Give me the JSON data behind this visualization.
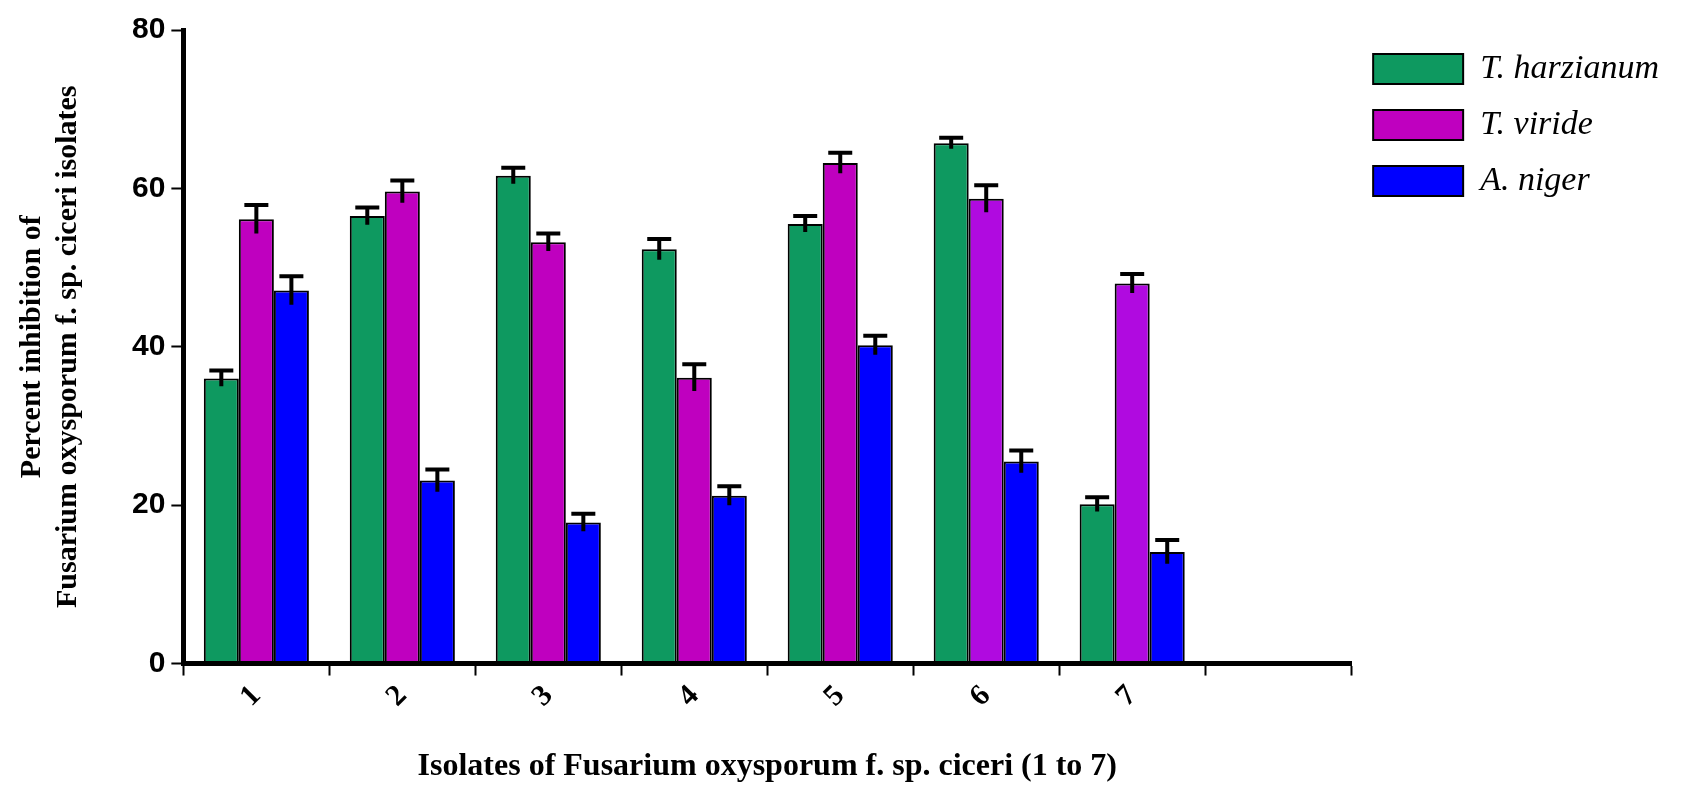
{
  "chart_data": {
    "type": "bar",
    "xlabel": "Isolates of Fusarium oxysporum f. sp. ciceri (1 to 7)",
    "ylabel": "Percent inhibition of\nFusarium oxysporum f. sp. ciceri isolates",
    "categories": [
      "1",
      "2",
      "3",
      "4",
      "5",
      "6",
      "7",
      null
    ],
    "series": [
      {
        "name": "T. harzianum",
        "color": "#0e9960",
        "values": [
          36.0,
          56.5,
          61.6,
          52.3,
          55.5,
          65.7,
          20.1,
          null
        ],
        "errors": [
          1.0,
          1.1,
          1.0,
          1.3,
          1.0,
          0.7,
          0.9,
          null
        ]
      },
      {
        "name": "T. viride",
        "color": "#bf00bf",
        "colors": [
          "#bf00bf",
          "#bf00bf",
          "#bf00bf",
          "#bf00bf",
          "#bf00bf",
          "#b00ae0",
          "#b00ae0",
          "#bf00bf"
        ],
        "values": [
          56.1,
          59.6,
          53.2,
          36.1,
          63.2,
          58.7,
          48.0,
          null
        ],
        "errors": [
          1.8,
          1.4,
          1.1,
          1.7,
          1.3,
          1.7,
          1.2,
          null
        ]
      },
      {
        "name": "A. niger",
        "color": "#0000ff",
        "values": [
          47.1,
          23.1,
          17.8,
          21.2,
          40.2,
          25.5,
          14.1,
          null
        ],
        "errors": [
          1.8,
          1.4,
          1.1,
          1.2,
          1.2,
          1.4,
          1.5,
          null
        ]
      }
    ],
    "ylim": [
      0,
      80
    ],
    "yticks": [
      0,
      20,
      40,
      60,
      80
    ],
    "grid": false,
    "legend": "top right"
  }
}
